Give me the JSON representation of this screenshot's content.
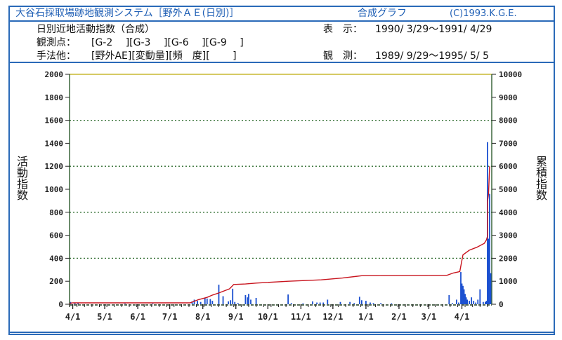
{
  "header": {
    "system_title": "大谷石採取場跡地観測システム［野外ＡＥ(日別)］",
    "graph_type": "合成グラフ",
    "copyright": "(C)1993.K.G.E."
  },
  "info": {
    "index_name": "日別近地活動指数（合成）",
    "display_label": "表　示：",
    "display_range": "1990/ 3/29〜1991/ 4/29",
    "points_label": "観測点：",
    "points": "[G-2　 ][G-3　 ][G-6　 ][G-9　 ]",
    "method_label": "手法他：",
    "methods": "[野外AE][変動量][頻　度][　　 ]",
    "observe_label": "観　測：",
    "observe_range": "1989/ 9/29〜1995/ 5/ 5"
  },
  "chart_data": {
    "type": "bar+line",
    "x_range": [
      "1990-03-29",
      "1991-04-29"
    ],
    "xtick_labels": [
      {
        "date": "1990-04-01",
        "label": "4/1"
      },
      {
        "date": "1990-05-01",
        "label": "5/1"
      },
      {
        "date": "1990-06-01",
        "label": "6/1"
      },
      {
        "date": "1990-07-01",
        "label": "7/1"
      },
      {
        "date": "1990-08-01",
        "label": "8/1"
      },
      {
        "date": "1990-09-01",
        "label": "9/1"
      },
      {
        "date": "1990-10-01",
        "label": "10/1"
      },
      {
        "date": "1990-11-01",
        "label": "11/1"
      },
      {
        "date": "1990-12-01",
        "label": "12/1"
      },
      {
        "date": "1991-01-01",
        "label": "1/1"
      },
      {
        "date": "1991-02-01",
        "label": "2/1"
      },
      {
        "date": "1991-03-01",
        "label": "3/1"
      },
      {
        "date": "1991-04-01",
        "label": "4/1"
      }
    ],
    "y_left": {
      "label": "活動指数",
      "range": [
        0,
        2000
      ],
      "ticks": [
        0,
        200,
        400,
        600,
        800,
        1000,
        1200,
        1400,
        1600,
        1800,
        2000
      ]
    },
    "y_right": {
      "label": "累積指数",
      "range": [
        0,
        10000
      ],
      "ticks": [
        0,
        1000,
        2000,
        3000,
        4000,
        5000,
        6000,
        7000,
        8000,
        9000,
        10000
      ]
    },
    "grid_dotted_at_left": [
      400,
      800,
      1200,
      1600
    ],
    "colors": {
      "bars": "#1a4fd0",
      "line": "#c8141e",
      "grid": "#2e6b2e",
      "axis": "#1e4f1e",
      "top": "#c8b830"
    },
    "bars_axis": "left",
    "bars": [
      [
        "1990-03-30",
        20
      ],
      [
        "1990-04-03",
        15
      ],
      [
        "1990-04-06",
        10
      ],
      [
        "1990-05-20",
        5
      ],
      [
        "1990-06-15",
        5
      ],
      [
        "1990-07-22",
        25
      ],
      [
        "1990-07-24",
        40
      ],
      [
        "1990-07-27",
        30
      ],
      [
        "1990-07-30",
        20
      ],
      [
        "1990-08-03",
        55
      ],
      [
        "1990-08-05",
        50
      ],
      [
        "1990-08-08",
        45
      ],
      [
        "1990-08-10",
        30
      ],
      [
        "1990-08-16",
        170
      ],
      [
        "1990-08-20",
        70
      ],
      [
        "1990-08-25",
        25
      ],
      [
        "1990-08-27",
        35
      ],
      [
        "1990-08-29",
        135
      ],
      [
        "1990-08-31",
        20
      ],
      [
        "1990-09-03",
        10
      ],
      [
        "1990-09-10",
        80
      ],
      [
        "1990-09-12",
        60
      ],
      [
        "1990-09-13",
        90
      ],
      [
        "1990-09-15",
        40
      ],
      [
        "1990-09-20",
        55
      ],
      [
        "1990-10-20",
        85
      ],
      [
        "1990-10-23",
        10
      ],
      [
        "1990-11-03",
        8
      ],
      [
        "1990-11-12",
        25
      ],
      [
        "1990-11-16",
        15
      ],
      [
        "1990-11-19",
        15
      ],
      [
        "1990-11-22",
        15
      ],
      [
        "1990-11-26",
        40
      ],
      [
        "1990-12-08",
        20
      ],
      [
        "1990-12-17",
        20
      ],
      [
        "1990-12-21",
        10
      ],
      [
        "1990-12-26",
        65
      ],
      [
        "1990-12-28",
        35
      ],
      [
        "1991-01-01",
        30
      ],
      [
        "1991-01-05",
        15
      ],
      [
        "1991-01-08",
        10
      ],
      [
        "1991-01-15",
        10
      ],
      [
        "1991-01-25",
        8
      ],
      [
        "1991-03-20",
        80
      ],
      [
        "1991-03-23",
        10
      ],
      [
        "1991-03-27",
        40
      ],
      [
        "1991-03-29",
        15
      ],
      [
        "1991-03-31",
        280
      ],
      [
        "1991-04-01",
        180
      ],
      [
        "1991-04-02",
        160
      ],
      [
        "1991-04-03",
        130
      ],
      [
        "1991-04-04",
        90
      ],
      [
        "1991-04-05",
        60
      ],
      [
        "1991-04-06",
        40
      ],
      [
        "1991-04-08",
        30
      ],
      [
        "1991-04-10",
        60
      ],
      [
        "1991-04-12",
        30
      ],
      [
        "1991-04-14",
        15
      ],
      [
        "1991-04-16",
        40
      ],
      [
        "1991-04-18",
        130
      ],
      [
        "1991-04-21",
        20
      ],
      [
        "1991-04-23",
        20
      ],
      [
        "1991-04-24",
        30
      ],
      [
        "1991-04-25",
        1410
      ],
      [
        "1991-04-26",
        570
      ],
      [
        "1991-04-27",
        960
      ],
      [
        "1991-04-28",
        270
      ]
    ],
    "line_axis": "right",
    "cumulative": [
      [
        "1990-03-29",
        40
      ],
      [
        "1990-04-01",
        60
      ],
      [
        "1990-07-20",
        60
      ],
      [
        "1990-07-28",
        200
      ],
      [
        "1990-08-05",
        300
      ],
      [
        "1990-08-10",
        400
      ],
      [
        "1990-08-16",
        490
      ],
      [
        "1990-08-26",
        670
      ],
      [
        "1990-08-30",
        860
      ],
      [
        "1990-09-10",
        880
      ],
      [
        "1990-09-20",
        920
      ],
      [
        "1990-10-20",
        1000
      ],
      [
        "1990-11-20",
        1060
      ],
      [
        "1990-12-10",
        1140
      ],
      [
        "1990-12-28",
        1240
      ],
      [
        "1991-03-18",
        1260
      ],
      [
        "1991-03-24",
        1360
      ],
      [
        "1991-03-30",
        1420
      ],
      [
        "1991-04-02",
        2150
      ],
      [
        "1991-04-08",
        2350
      ],
      [
        "1991-04-15",
        2480
      ],
      [
        "1991-04-22",
        2650
      ],
      [
        "1991-04-24",
        2800
      ],
      [
        "1991-04-25",
        2950
      ],
      [
        "1991-04-25",
        4450
      ],
      [
        "1991-04-26",
        4800
      ],
      [
        "1991-04-27",
        6000
      ]
    ]
  }
}
